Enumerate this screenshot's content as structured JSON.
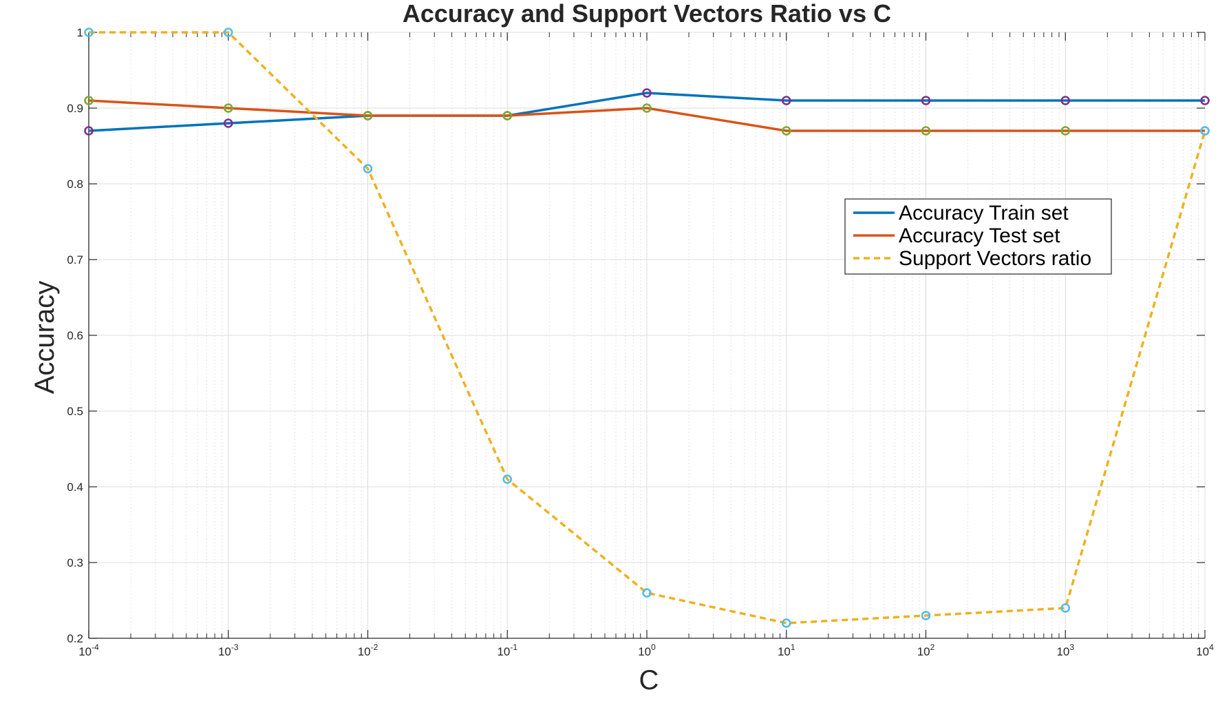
{
  "chart_data": {
    "type": "line",
    "title": "Accuracy and Support Vectors Ratio vs C",
    "xlabel": "C",
    "ylabel": "Accuracy",
    "x_scale": "log",
    "x": [
      0.0001,
      0.001,
      0.01,
      0.1,
      1,
      10,
      100,
      1000,
      10000
    ],
    "xlim": [
      0.0001,
      10000
    ],
    "ylim": [
      0.2,
      1
    ],
    "x_tick_labels": [
      {
        "base": "10",
        "exp": "-4"
      },
      {
        "base": "10",
        "exp": "-3"
      },
      {
        "base": "10",
        "exp": "-2"
      },
      {
        "base": "10",
        "exp": "-1"
      },
      {
        "base": "10",
        "exp": "0"
      },
      {
        "base": "10",
        "exp": "1"
      },
      {
        "base": "10",
        "exp": "2"
      },
      {
        "base": "10",
        "exp": "3"
      },
      {
        "base": "10",
        "exp": "4"
      }
    ],
    "y_tick_labels": [
      "0.2",
      "0.3",
      "0.4",
      "0.5",
      "0.6",
      "0.7",
      "0.8",
      "0.9",
      "1"
    ],
    "y_ticks": [
      0.2,
      0.3,
      0.4,
      0.5,
      0.6,
      0.7,
      0.8,
      0.9,
      1
    ],
    "grid": true,
    "legend_position": "upper-right",
    "series": [
      {
        "name": "Accuracy Train set",
        "values": [
          0.87,
          0.88,
          0.89,
          0.89,
          0.92,
          0.91,
          0.91,
          0.91,
          0.91
        ],
        "color": "#0072BD",
        "marker_color": "#7E2F8E",
        "style": "solid"
      },
      {
        "name": "Accuracy Test set",
        "values": [
          0.91,
          0.9,
          0.89,
          0.89,
          0.9,
          0.87,
          0.87,
          0.87,
          0.87
        ],
        "color": "#D95319",
        "marker_color": "#77AC30",
        "style": "solid"
      },
      {
        "name": "Support Vectors ratio",
        "values": [
          1.0,
          1.0,
          0.82,
          0.41,
          0.26,
          0.22,
          0.23,
          0.24,
          0.87
        ],
        "color": "#EDB120",
        "marker_color": "#4DBEEE",
        "style": "dashed"
      }
    ]
  }
}
